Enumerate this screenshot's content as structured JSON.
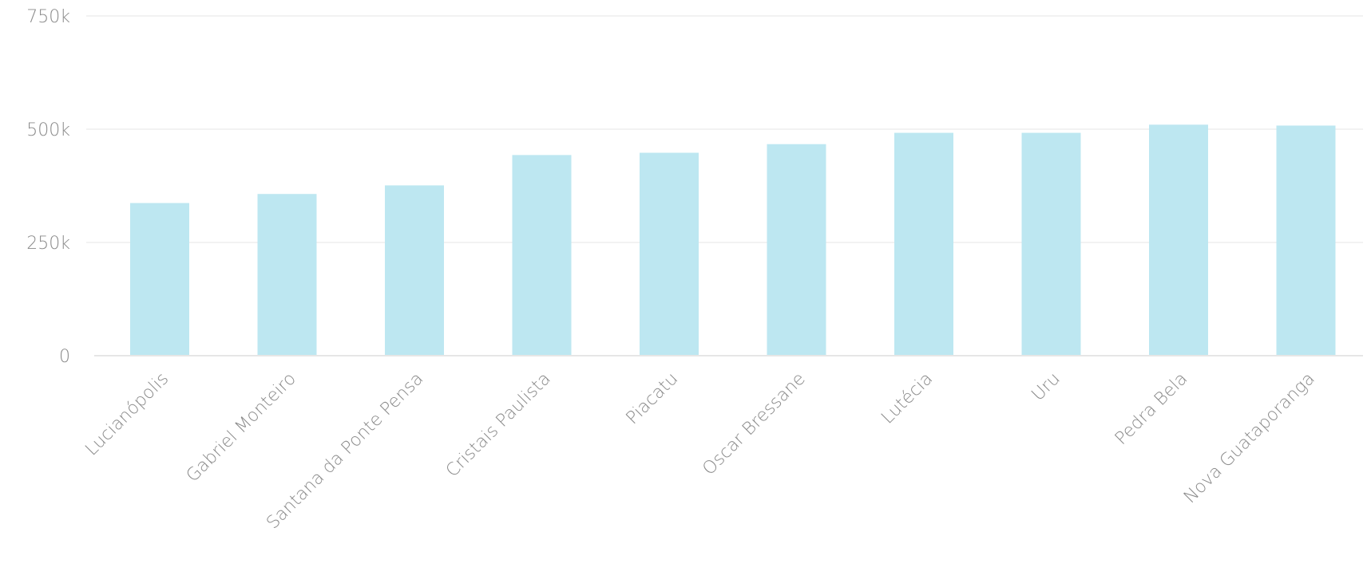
{
  "colors": {
    "bar": "#bde7f1",
    "gridline": "#eeeeee",
    "axis_line": "#e6e6e6",
    "tick_text": "#8a8a8a"
  },
  "chart_data": {
    "type": "bar",
    "title": "",
    "xlabel": "",
    "ylabel": "",
    "categories": [
      "Lucianópolis",
      "Gabriel Monteiro",
      "Santana da Ponte Pensa",
      "Cristais Paulista",
      "Piacatu",
      "Oscar Bressane",
      "Lutécia",
      "Uru",
      "Pedra Bela",
      "Nova Guataporanga"
    ],
    "values": [
      337000,
      357000,
      376000,
      443000,
      448000,
      467000,
      492000,
      492000,
      510000,
      508000
    ],
    "ylim": [
      0,
      750000
    ],
    "yticks": [
      0,
      250000,
      500000,
      750000
    ],
    "ytick_labels": [
      "0",
      "250k",
      "500k",
      "750k"
    ],
    "grid": true,
    "legend": "none"
  }
}
